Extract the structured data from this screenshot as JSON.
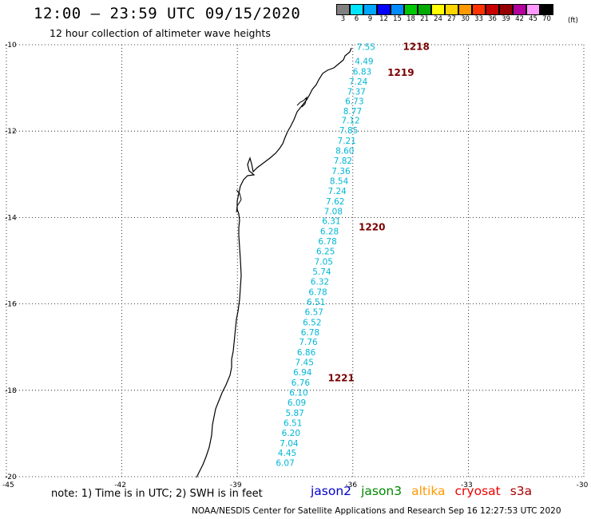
{
  "header": {
    "title": "12:00 — 23:59 UTC 09/15/2020",
    "subtitle": "12 hour collection of altimeter wave heights"
  },
  "colorbar": {
    "labels": [
      "3",
      "6",
      "9",
      "12",
      "15",
      "18",
      "21",
      "24",
      "27",
      "30",
      "33",
      "36",
      "39",
      "42",
      "45",
      "70"
    ],
    "colors": [
      "#808080",
      "#00e5ff",
      "#00a6ff",
      "#0000ff",
      "#008bff",
      "#00c800",
      "#00aa00",
      "#ffff00",
      "#ffd500",
      "#ff9900",
      "#ff3300",
      "#c80000",
      "#960000",
      "#b4009c",
      "#ff99ff",
      "#000000"
    ],
    "unit": "(ft)"
  },
  "map": {
    "lon_ticks": [
      "-45",
      "-42",
      "-39",
      "-36",
      "-33",
      "-30"
    ],
    "lat_ticks": [
      "-10",
      "-12",
      "-14",
      "-16",
      "-18",
      "-20"
    ],
    "lon_range": [
      -45,
      -30
    ],
    "lat_range": [
      -10,
      -20
    ],
    "label_color": "#00b7d6",
    "pass_color": "#7a0000",
    "wave_labels": [
      {
        "lat": -10.05,
        "lon": -35.9,
        "v": "7.55"
      },
      {
        "lat": -10.38,
        "lon": -35.95,
        "v": "4.49"
      },
      {
        "lat": -10.62,
        "lon": -36.0,
        "v": "6.83"
      },
      {
        "lat": -10.85,
        "lon": -36.1,
        "v": "7.24"
      },
      {
        "lat": -11.08,
        "lon": -36.15,
        "v": "7.37"
      },
      {
        "lat": -11.3,
        "lon": -36.2,
        "v": "6.73"
      },
      {
        "lat": -11.53,
        "lon": -36.25,
        "v": "8.77"
      },
      {
        "lat": -11.75,
        "lon": -36.3,
        "v": "7.12"
      },
      {
        "lat": -11.98,
        "lon": -36.35,
        "v": "7.85"
      },
      {
        "lat": -12.22,
        "lon": -36.4,
        "v": "7.21"
      },
      {
        "lat": -12.45,
        "lon": -36.45,
        "v": "8.60"
      },
      {
        "lat": -12.68,
        "lon": -36.5,
        "v": "7.82"
      },
      {
        "lat": -12.92,
        "lon": -36.55,
        "v": "7.36"
      },
      {
        "lat": -13.15,
        "lon": -36.6,
        "v": "8.54"
      },
      {
        "lat": -13.38,
        "lon": -36.65,
        "v": "7.24"
      },
      {
        "lat": -13.62,
        "lon": -36.7,
        "v": "7.62"
      },
      {
        "lat": -13.85,
        "lon": -36.75,
        "v": "7.08"
      },
      {
        "lat": -14.08,
        "lon": -36.8,
        "v": "6.31"
      },
      {
        "lat": -14.32,
        "lon": -36.85,
        "v": "6.28"
      },
      {
        "lat": -14.55,
        "lon": -36.9,
        "v": "6.78"
      },
      {
        "lat": -14.78,
        "lon": -36.95,
        "v": "6.25"
      },
      {
        "lat": -15.02,
        "lon": -37.0,
        "v": "7.05"
      },
      {
        "lat": -15.25,
        "lon": -37.05,
        "v": "5.74"
      },
      {
        "lat": -15.48,
        "lon": -37.1,
        "v": "6.32"
      },
      {
        "lat": -15.72,
        "lon": -37.15,
        "v": "6.78"
      },
      {
        "lat": -15.95,
        "lon": -37.2,
        "v": "6.51"
      },
      {
        "lat": -16.18,
        "lon": -37.25,
        "v": "6.57"
      },
      {
        "lat": -16.42,
        "lon": -37.3,
        "v": "6.52"
      },
      {
        "lat": -16.65,
        "lon": -37.35,
        "v": "6.78"
      },
      {
        "lat": -16.88,
        "lon": -37.4,
        "v": "7.76"
      },
      {
        "lat": -17.12,
        "lon": -37.45,
        "v": "6.86"
      },
      {
        "lat": -17.35,
        "lon": -37.5,
        "v": "7.45"
      },
      {
        "lat": -17.58,
        "lon": -37.55,
        "v": "6.94"
      },
      {
        "lat": -17.82,
        "lon": -37.6,
        "v": "6.76"
      },
      {
        "lat": -18.05,
        "lon": -37.65,
        "v": "6.10"
      },
      {
        "lat": -18.28,
        "lon": -37.7,
        "v": "6.09"
      },
      {
        "lat": -18.52,
        "lon": -37.75,
        "v": "5.87"
      },
      {
        "lat": -18.75,
        "lon": -37.8,
        "v": "6.51"
      },
      {
        "lat": -18.98,
        "lon": -37.85,
        "v": "6.20"
      },
      {
        "lat": -19.22,
        "lon": -37.9,
        "v": "7.04"
      },
      {
        "lat": -19.45,
        "lon": -37.95,
        "v": "4.45"
      },
      {
        "lat": -19.68,
        "lon": -38.0,
        "v": "6.07"
      }
    ],
    "pass_labels": [
      {
        "lat": -10.05,
        "lon": -34.7,
        "v": "1218"
      },
      {
        "lat": -10.65,
        "lon": -35.1,
        "v": "1219"
      },
      {
        "lat": -14.22,
        "lon": -35.85,
        "v": "1220"
      },
      {
        "lat": -17.72,
        "lon": -36.65,
        "v": "1221"
      }
    ]
  },
  "footer": {
    "note": "note:  1) Time is in UTC;  2) SWH is in feet",
    "satellites": [
      {
        "name": "jason2",
        "color": "#0000cc"
      },
      {
        "name": "jason3",
        "color": "#008800"
      },
      {
        "name": "altika",
        "color": "#ff9900"
      },
      {
        "name": "cryosat",
        "color": "#ee0000"
      },
      {
        "name": "s3a",
        "color": "#aa0000"
      }
    ],
    "credit": "NOAA/NESDIS Center for Satellite Applications and Research    Sep 16 12:27:53 UTC 2020"
  }
}
